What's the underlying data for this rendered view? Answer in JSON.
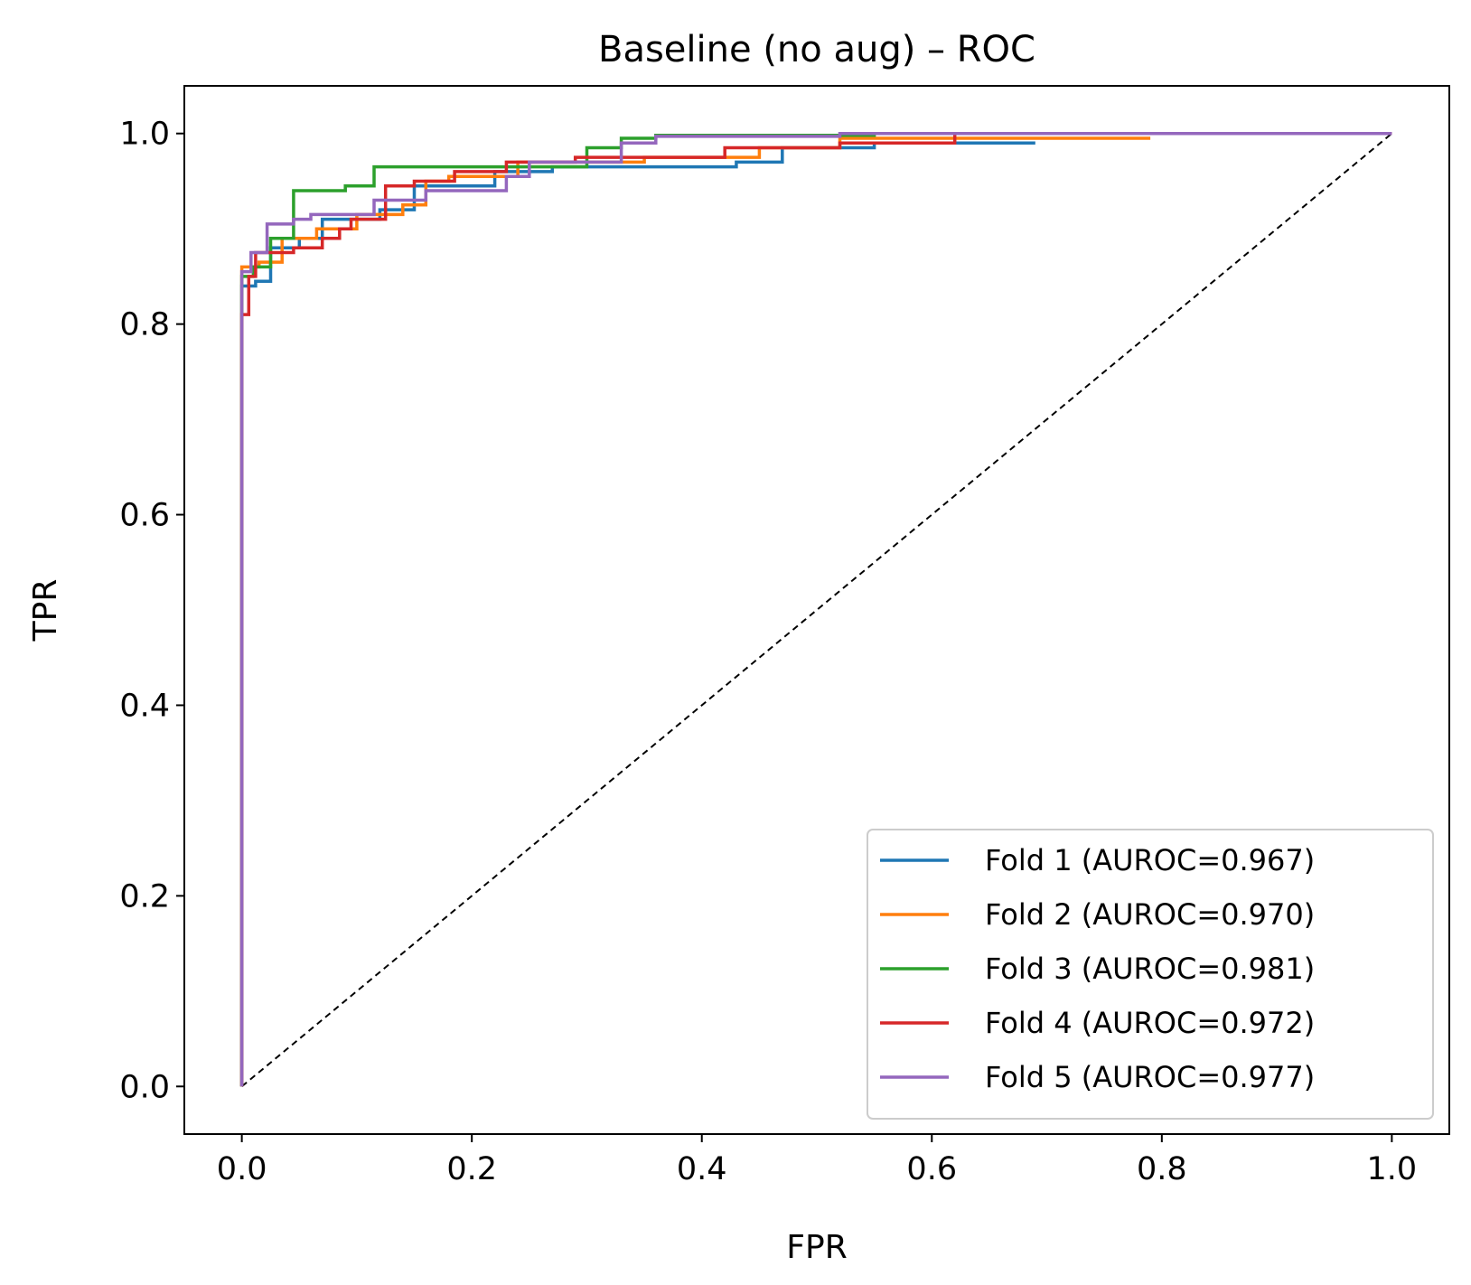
{
  "chart_data": {
    "type": "line",
    "title": "Baseline (no aug) – ROC",
    "xlabel": "FPR",
    "ylabel": "TPR",
    "xlim": [
      -0.05,
      1.05
    ],
    "ylim": [
      -0.05,
      1.05
    ],
    "x_ticks": [
      "0.0",
      "0.2",
      "0.4",
      "0.6",
      "0.8",
      "1.0"
    ],
    "y_ticks": [
      "0.0",
      "0.2",
      "0.4",
      "0.6",
      "0.8",
      "1.0"
    ],
    "grid": false,
    "legend_position": "bottom-right",
    "reference_line": {
      "x": [
        0,
        1
      ],
      "y": [
        0,
        1
      ],
      "color": "#000000",
      "style": "dashed"
    },
    "series": [
      {
        "name": "Fold 1 (AUROC=0.967)",
        "color": "#1f77b4",
        "x": [
          0,
          0,
          0.012,
          0.012,
          0.025,
          0.025,
          0.05,
          0.05,
          0.07,
          0.07,
          0.12,
          0.12,
          0.15,
          0.15,
          0.22,
          0.22,
          0.27,
          0.27,
          0.43,
          0.43,
          0.47,
          0.47,
          0.55,
          0.55,
          0.69
        ],
        "y": [
          0,
          0.84,
          0.84,
          0.845,
          0.845,
          0.88,
          0.88,
          0.89,
          0.89,
          0.91,
          0.91,
          0.92,
          0.92,
          0.945,
          0.945,
          0.96,
          0.96,
          0.965,
          0.965,
          0.97,
          0.97,
          0.985,
          0.985,
          0.99,
          0.99
        ]
      },
      {
        "name": "Fold 2 (AUROC=0.970)",
        "color": "#ff7f0e",
        "x": [
          0,
          0,
          0.015,
          0.015,
          0.035,
          0.035,
          0.065,
          0.065,
          0.1,
          0.1,
          0.14,
          0.14,
          0.16,
          0.16,
          0.18,
          0.18,
          0.24,
          0.24,
          0.35,
          0.35,
          0.45,
          0.45,
          0.52,
          0.52,
          0.79
        ],
        "y": [
          0,
          0.86,
          0.86,
          0.865,
          0.865,
          0.89,
          0.89,
          0.9,
          0.9,
          0.915,
          0.915,
          0.925,
          0.925,
          0.95,
          0.95,
          0.955,
          0.955,
          0.97,
          0.97,
          0.975,
          0.975,
          0.985,
          0.985,
          0.995,
          0.995
        ]
      },
      {
        "name": "Fold 3 (AUROC=0.981)",
        "color": "#2ca02c",
        "x": [
          0,
          0,
          0.01,
          0.01,
          0.025,
          0.025,
          0.045,
          0.045,
          0.09,
          0.09,
          0.115,
          0.115,
          0.3,
          0.3,
          0.33,
          0.33,
          0.36,
          0.36,
          0.55,
          0.55,
          0.62
        ],
        "y": [
          0,
          0.85,
          0.85,
          0.86,
          0.86,
          0.89,
          0.89,
          0.94,
          0.94,
          0.945,
          0.945,
          0.965,
          0.965,
          0.985,
          0.985,
          0.995,
          0.995,
          0.998,
          0.998,
          1.0,
          1.0
        ]
      },
      {
        "name": "Fold 4 (AUROC=0.972)",
        "color": "#d62728",
        "x": [
          0,
          0,
          0.006,
          0.006,
          0.012,
          0.012,
          0.045,
          0.045,
          0.07,
          0.07,
          0.085,
          0.085,
          0.095,
          0.095,
          0.125,
          0.125,
          0.15,
          0.15,
          0.185,
          0.185,
          0.23,
          0.23,
          0.29,
          0.29,
          0.42,
          0.42,
          0.52,
          0.52,
          0.62,
          0.62,
          1.0
        ],
        "y": [
          0,
          0.81,
          0.81,
          0.85,
          0.85,
          0.875,
          0.875,
          0.88,
          0.88,
          0.89,
          0.89,
          0.9,
          0.9,
          0.91,
          0.91,
          0.945,
          0.945,
          0.95,
          0.95,
          0.96,
          0.96,
          0.97,
          0.97,
          0.975,
          0.975,
          0.985,
          0.985,
          0.99,
          0.99,
          1.0,
          1.0
        ]
      },
      {
        "name": "Fold 5 (AUROC=0.977)",
        "color": "#9467bd",
        "x": [
          0,
          0,
          0.008,
          0.008,
          0.022,
          0.022,
          0.045,
          0.045,
          0.06,
          0.06,
          0.115,
          0.115,
          0.16,
          0.16,
          0.23,
          0.23,
          0.25,
          0.25,
          0.33,
          0.33,
          0.36,
          0.36,
          0.52,
          0.52,
          1.0
        ],
        "y": [
          0,
          0.855,
          0.855,
          0.875,
          0.875,
          0.905,
          0.905,
          0.91,
          0.91,
          0.915,
          0.915,
          0.93,
          0.93,
          0.94,
          0.94,
          0.955,
          0.955,
          0.97,
          0.97,
          0.99,
          0.99,
          0.997,
          0.997,
          1.0,
          1.0
        ]
      }
    ]
  }
}
